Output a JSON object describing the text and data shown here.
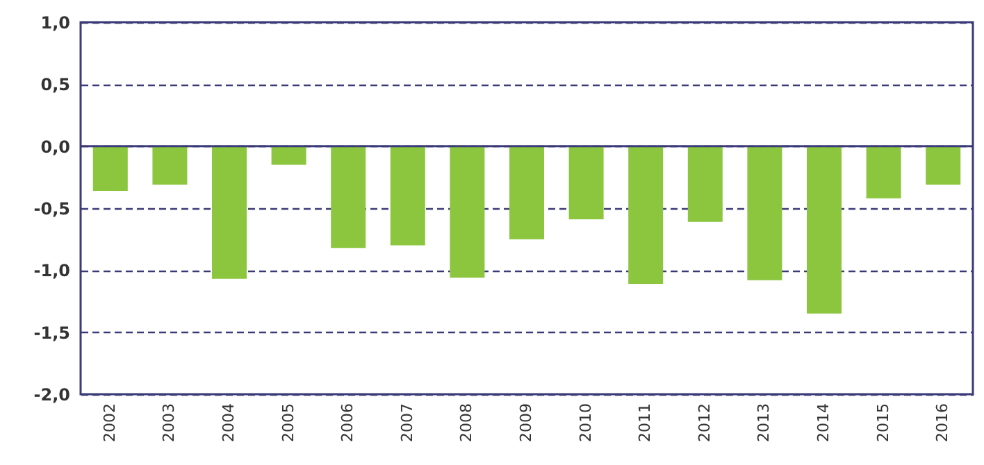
{
  "chart_data": {
    "type": "bar",
    "categories": [
      "2002",
      "2003",
      "2004",
      "2005",
      "2006",
      "2007",
      "2008",
      "2009",
      "2010",
      "2011",
      "2012",
      "2013",
      "2014",
      "2015",
      "2016"
    ],
    "values": [
      -0.36,
      -0.31,
      -1.07,
      -0.15,
      -0.82,
      -0.8,
      -1.06,
      -0.75,
      -0.59,
      -1.11,
      -0.61,
      -1.08,
      -1.35,
      -0.42,
      -0.31
    ],
    "color": "#8cc63f",
    "ylim": [
      -2,
      1
    ],
    "yticks": [
      {
        "value": -2,
        "label": "-2,0"
      },
      {
        "value": -1.5,
        "label": "-1,5"
      },
      {
        "value": -1,
        "label": "-1,0"
      },
      {
        "value": -0.5,
        "label": "-0,5"
      },
      {
        "value": 0,
        "label": "0,0"
      },
      {
        "value": 0.5,
        "label": "0,5"
      },
      {
        "value": 1,
        "label": "1,0"
      }
    ],
    "grid": "y",
    "ref_lines": [
      {
        "axis": "y",
        "value": 0,
        "color": "#3b3a78",
        "line_style": "solid"
      }
    ]
  }
}
